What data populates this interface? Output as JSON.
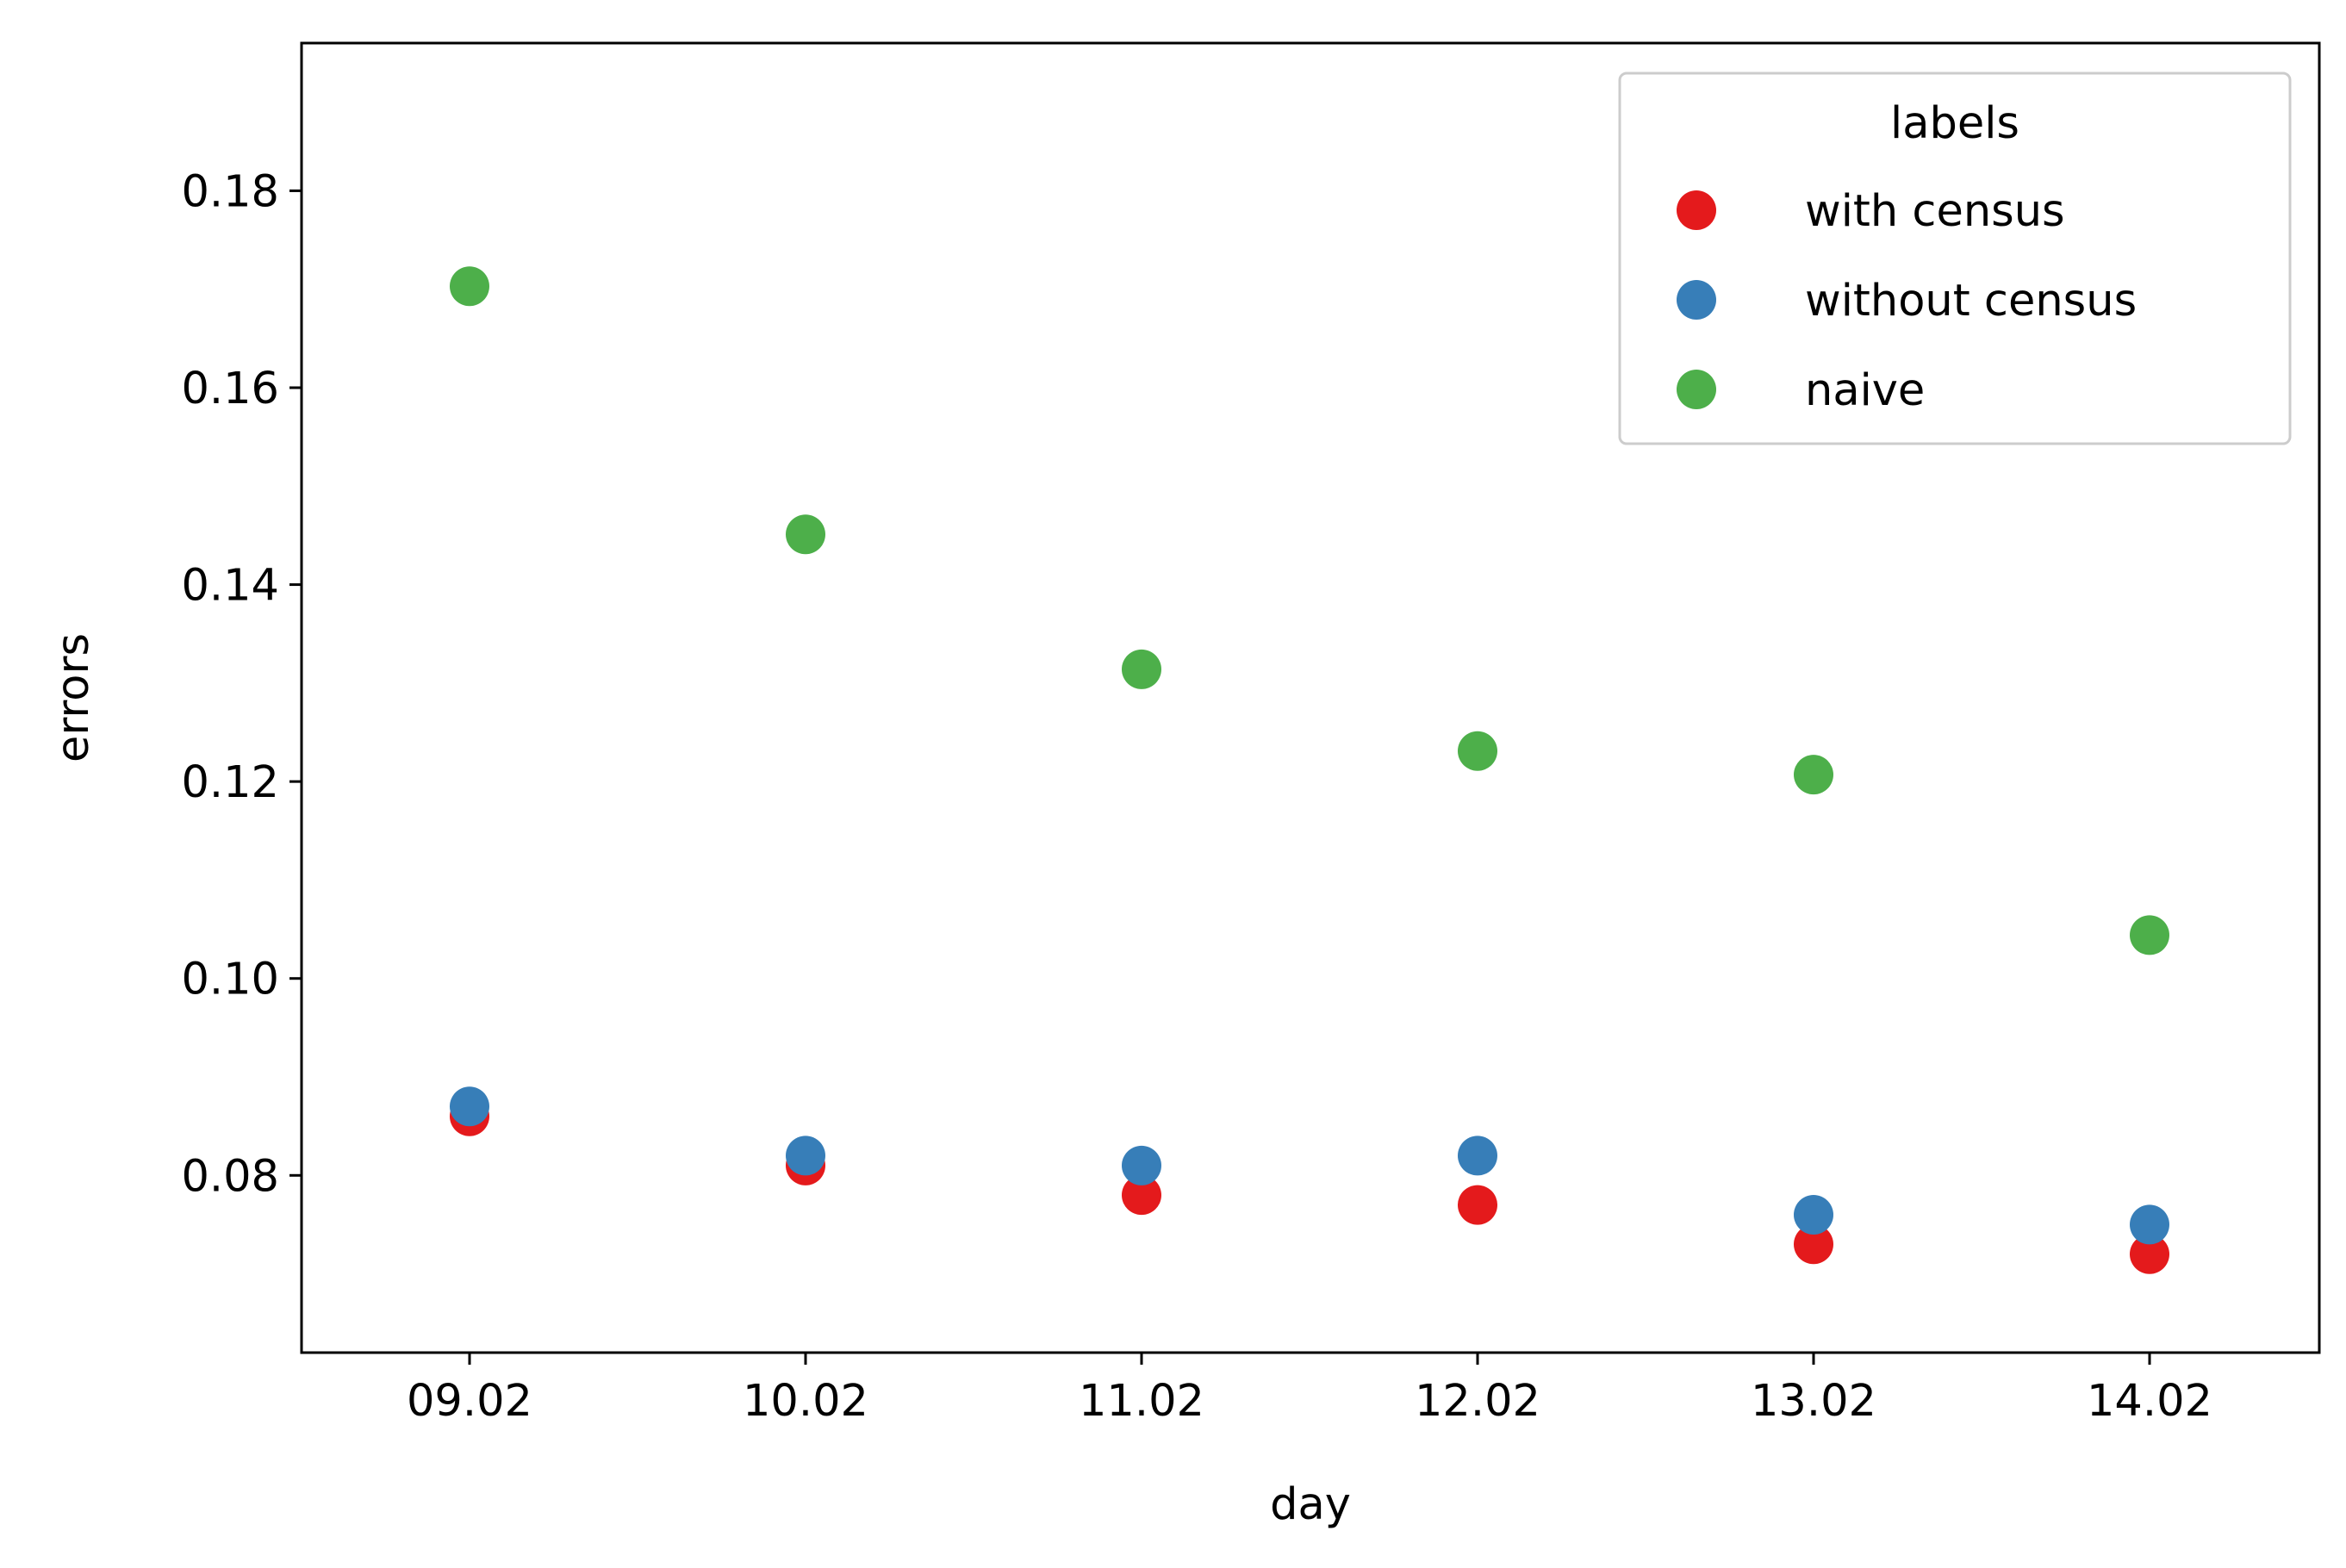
{
  "chart_data": {
    "type": "scatter",
    "title": "",
    "xlabel": "day",
    "ylabel": "errors",
    "categories": [
      "09.02",
      "10.02",
      "11.02",
      "12.02",
      "13.02",
      "14.02"
    ],
    "ylim": [
      0.062,
      0.195
    ],
    "yticks": [
      "0.08",
      "0.10",
      "0.12",
      "0.14",
      "0.16",
      "0.18"
    ],
    "grid": false,
    "legend": {
      "title": "labels",
      "position": "top-right"
    },
    "series": [
      {
        "name": "with census",
        "color": "#e41a1c",
        "values": [
          0.086,
          0.081,
          0.078,
          0.077,
          0.073,
          0.072
        ]
      },
      {
        "name": "without census",
        "color": "#377eb8",
        "values": [
          0.087,
          0.082,
          0.081,
          0.082,
          0.076,
          0.075
        ]
      },
      {
        "name": "naive",
        "color": "#4daf4a",
        "values": [
          0.1703,
          0.1451,
          0.1314,
          0.1231,
          0.1207,
          0.1044
        ]
      }
    ]
  }
}
